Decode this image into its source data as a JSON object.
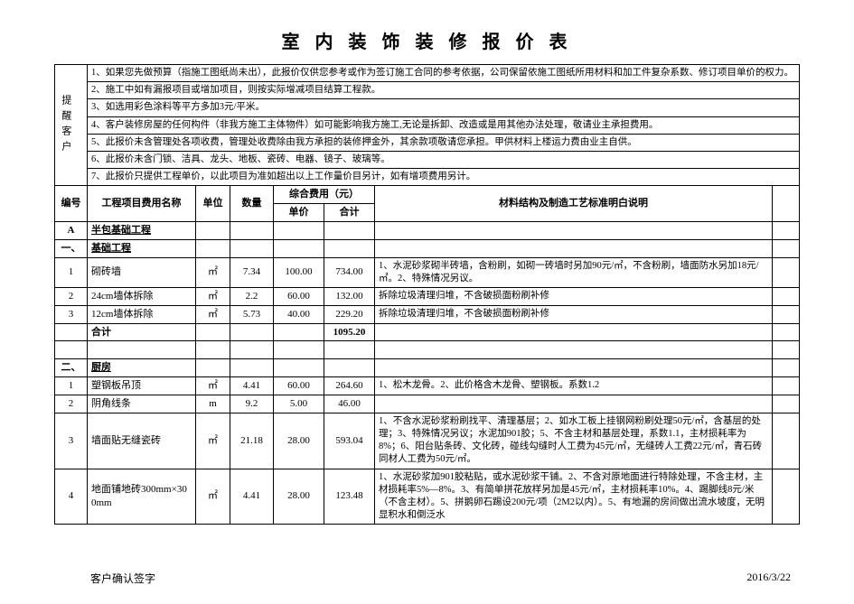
{
  "title": "室 内 装 饰 装 修 报 价 表",
  "sideLabel": "提醒客户",
  "notes": [
    "1、如果您先做预算（指施工图纸尚未出），此报价仅供您参考或作为签订施工合同的参考依据，公司保留依施工图纸所用材料和加工件复杂系数、修订项目单价的权力。",
    "2、施工中如有漏报项目或增加项目，则按实际增减项目结算工程款。",
    "3、如选用彩色涂料等平方多加3元/平米。",
    "4、客户装修房屋的任何构件（非我方施工主体物件）如可能影响我方施工,无论是拆卸、改造或是用其他办法处理，敬请业主承担费用。",
    "5、此报价未含管理处各项收费，管理处收费除由我方承担的装修押金外，其余款项敬请您承担。甲供材料上楼运力费由业主自供。",
    "6、此报价未含门锁、洁具、龙头、地板、瓷砖、电器、镜子、玻璃等。",
    "7、此报价只提供工程单价，以此项目为准如超出以上工作量价目另计，如有增项费用另计。"
  ],
  "head": {
    "no": "编号",
    "name": "工程项目费用名称",
    "unit": "单位",
    "qty": "数量",
    "costGroup": "综合费用（元）",
    "unitPrice": "单价",
    "total": "合计",
    "desc": "材料结构及制造工艺标准明白说明"
  },
  "secA": {
    "code": "A",
    "label": "半包基础工程"
  },
  "sec1": {
    "code": "一、",
    "label": "基础工程"
  },
  "rowsBase": [
    {
      "no": "1",
      "name": "砌砖墙",
      "unit": "㎡",
      "qty": "7.34",
      "price": "100.00",
      "total": "734.00",
      "desc": "1、水泥砂浆砌半砖墙，含粉刷，如砌一砖墙时另加90元/㎡，不含粉刷，墙面防水另加18元/㎡。2、特殊情况另议。"
    },
    {
      "no": "2",
      "name": "24cm墙体拆除",
      "unit": "㎡",
      "qty": "2.2",
      "price": "60.00",
      "total": "132.00",
      "desc": "拆除垃圾清理归堆，不含破损面粉刷补修"
    },
    {
      "no": "3",
      "name": "12cm墙体拆除",
      "unit": "㎡",
      "qty": "5.73",
      "price": "40.00",
      "total": "229.20",
      "desc": "拆除垃圾清理归堆，不含破损面粉刷补修"
    }
  ],
  "subtotalLabel": "合计",
  "subtotalBase": "1095.20",
  "sec2": {
    "code": "二、",
    "label": "厨房"
  },
  "rowsKitchen": [
    {
      "no": "1",
      "name": "塑钢板吊顶",
      "unit": "㎡",
      "qty": "4.41",
      "price": "60.00",
      "total": "264.60",
      "desc": "1、松木龙骨。2、此价格含木龙骨、塑钢板。系数1.2"
    },
    {
      "no": "2",
      "name": "阴角线条",
      "unit": "m",
      "qty": "9.2",
      "price": "5.00",
      "total": "46.00",
      "desc": ""
    },
    {
      "no": "3",
      "name": "墙面贴无缝瓷砖",
      "unit": "㎡",
      "qty": "21.18",
      "price": "28.00",
      "total": "593.04",
      "desc": "1、不含水泥砂浆粉刷找平、清理基层；2、如水工板上挂钢网粉刷处理50元/㎡，含基层的处理；3、特殊情况另议；水泥加901胶；5、不含主材和基层处理，系数1.1，主材损耗率为8%；6、阳台贴条砖、文化砖，碰线勾缝时人工费为45元/㎡，无缝砖人工费22元/㎡，青石砖同材人工费为50元/㎡。"
    },
    {
      "no": "4",
      "name": "地面铺地砖300mm×300mm",
      "unit": "㎡",
      "qty": "4.41",
      "price": "28.00",
      "total": "123.48",
      "desc": "1、水泥砂浆加901胶粘贴，或水泥砂浆干铺。2、不含对原地面进行特除处理，不含主材，主材损耗率5%—8%。3、有简单拼花放样另加是45元/㎡，主材损耗率10%。4、踢脚线8元/米（不含主材）。5、拼鹅卵石踢设200元/项（2M2以内）。5、有地漏的房间做出流水坡度，无明显积水和倒泛水"
    }
  ],
  "footer": {
    "sign": "客户确认签字",
    "date": "2016/3/22"
  }
}
